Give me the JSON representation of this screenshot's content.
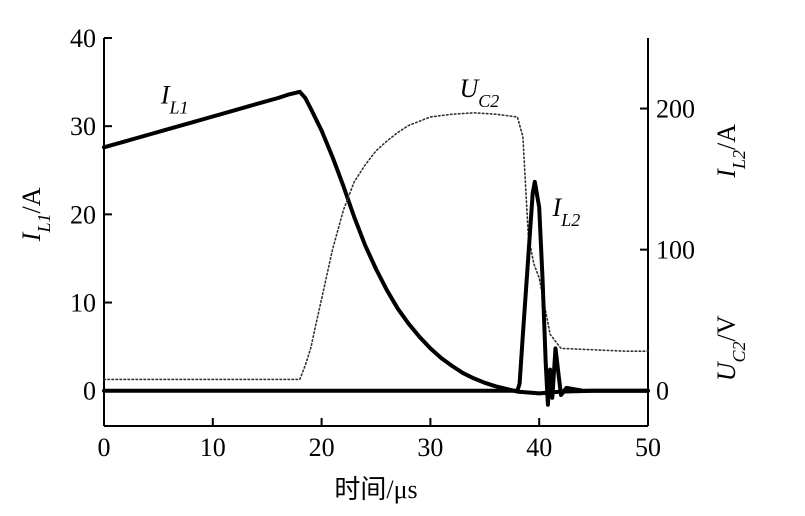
{
  "chart_data": {
    "type": "line",
    "xlabel": "时间/μs",
    "ylabel_left": "I_L1/A",
    "ylabel_right_top": "I_L2/A",
    "ylabel_right_bottom": "U_C2/V",
    "xlim": [
      0,
      50
    ],
    "ylim_left": [
      -4,
      40
    ],
    "ylim_right": [
      -25,
      250
    ],
    "x_ticks": [
      0,
      10,
      20,
      30,
      40,
      50
    ],
    "y_left_ticks": [
      0,
      10,
      20,
      30,
      40
    ],
    "y_right_ticks": [
      0,
      100,
      200
    ],
    "grid": false,
    "annotations": [
      {
        "name": "I",
        "sub": "L1",
        "x": 6.5,
        "y": 32.6
      },
      {
        "name": "U",
        "sub": "C2",
        "x": 34.5,
        "y": 33.3
      },
      {
        "name": "I",
        "sub": "L2",
        "x": 42.5,
        "y": 19.8
      }
    ],
    "series": [
      {
        "name": "I_L1",
        "axis": "left",
        "style": "thick",
        "x": [
          0,
          2,
          4,
          6,
          8,
          10,
          12,
          14,
          16,
          17,
          18,
          18.5,
          19,
          20,
          21,
          22,
          23,
          24,
          25,
          26,
          27,
          28,
          29,
          30,
          31,
          32,
          33,
          34,
          35,
          36,
          37,
          38,
          39,
          40,
          41,
          42,
          45,
          48,
          50
        ],
        "y": [
          27.6,
          28.3,
          29.0,
          29.7,
          30.4,
          31.1,
          31.8,
          32.5,
          33.2,
          33.6,
          33.9,
          33.2,
          32.0,
          29.5,
          26.5,
          23.2,
          19.7,
          16.5,
          13.8,
          11.4,
          9.3,
          7.6,
          6.1,
          4.8,
          3.7,
          2.8,
          2.0,
          1.4,
          0.9,
          0.5,
          0.2,
          -0.1,
          -0.2,
          -0.3,
          -0.2,
          -0.1,
          0.0,
          0.0,
          0.0
        ]
      },
      {
        "name": "U_C2",
        "axis": "right",
        "style": "dotted",
        "x": [
          0,
          5,
          10,
          15,
          17,
          18,
          18.5,
          19,
          19.5,
          20,
          21,
          22,
          23,
          24,
          25,
          26,
          27,
          28,
          29,
          30,
          32,
          34,
          36,
          37,
          38,
          38.5,
          39,
          39.5,
          40,
          40.5,
          41,
          42,
          45,
          48,
          50
        ],
        "y": [
          8,
          8,
          8,
          8,
          8,
          8,
          18,
          30,
          48,
          65,
          100,
          128,
          148,
          160,
          170,
          177,
          183,
          188,
          191,
          194,
          196,
          197,
          196,
          195,
          194,
          180,
          110,
          90,
          80,
          60,
          40,
          30,
          29,
          28,
          28
        ]
      },
      {
        "name": "I_L2",
        "axis": "right",
        "style": "thick",
        "x": [
          0,
          10,
          20,
          30,
          35,
          37,
          38,
          38.2,
          38.5,
          39,
          39.4,
          39.6,
          40.0,
          40.3,
          40.6,
          40.8,
          41.0,
          41.2,
          41.5,
          41.8,
          42.0,
          42.5,
          44,
          47,
          50
        ],
        "y": [
          0,
          0,
          0,
          0,
          0,
          0,
          0,
          5,
          40,
          95,
          140,
          148,
          130,
          80,
          20,
          -10,
          15,
          -5,
          30,
          10,
          -3,
          2,
          0,
          0,
          0
        ]
      }
    ]
  }
}
